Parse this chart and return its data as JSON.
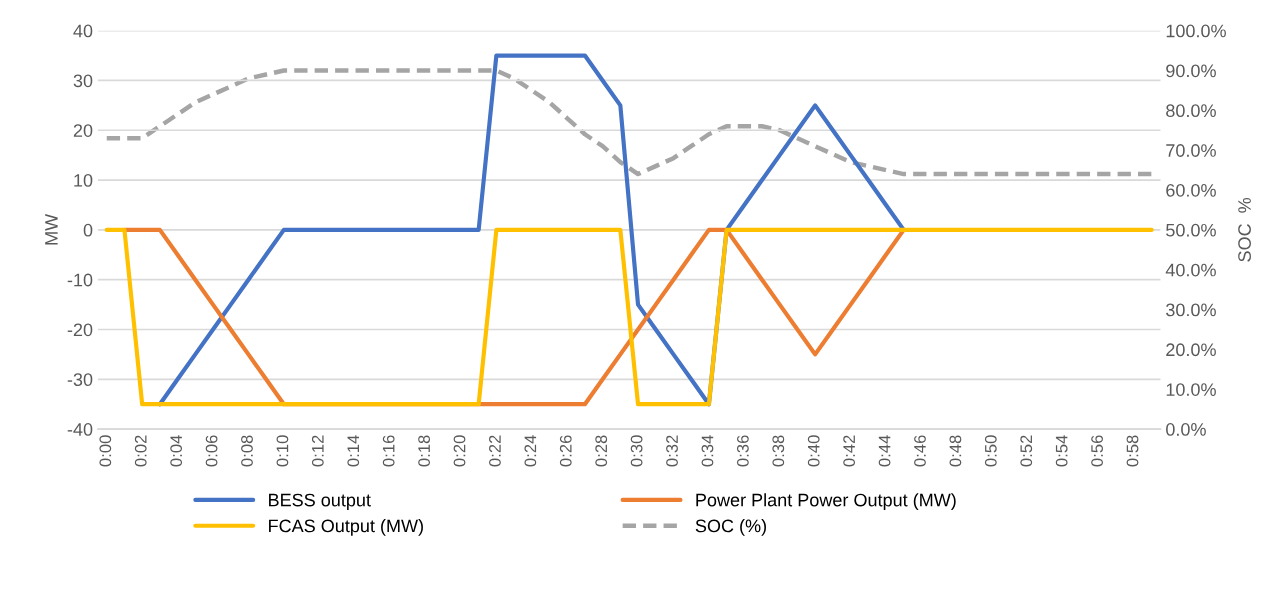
{
  "chart_data": {
    "type": "line",
    "categories": [
      "0:00",
      null,
      "0:02",
      null,
      "0:04",
      null,
      "0:06",
      null,
      "0:08",
      null,
      "0:10",
      null,
      "0:12",
      null,
      "0:14",
      null,
      "0:16",
      null,
      "0:18",
      null,
      "0:20",
      null,
      "0:22",
      null,
      "0:24",
      null,
      "0:26",
      null,
      "0:28",
      null,
      "0:30",
      null,
      "0:32",
      null,
      "0:34",
      null,
      "0:36",
      null,
      "0:38",
      null,
      "0:40",
      null,
      "0:42",
      null,
      "0:44",
      null,
      "0:46",
      null,
      "0:48",
      null,
      "0:50",
      null,
      "0:52",
      null,
      "0:54",
      null,
      "0:56",
      null,
      "0:58",
      null
    ],
    "ylabel": "MW",
    "y2label": "SOC  %",
    "ylim": [
      -40,
      40
    ],
    "yticks": [
      -40,
      -30,
      -20,
      -10,
      0,
      10,
      20,
      30,
      40
    ],
    "y2lim": [
      0,
      100
    ],
    "y2ticks": [
      {
        "value": 0,
        "label": "0.0%"
      },
      {
        "value": 10,
        "label": "10.0%"
      },
      {
        "value": 20,
        "label": "20.0%"
      },
      {
        "value": 30,
        "label": "30.0%"
      },
      {
        "value": 40,
        "label": "40.0%"
      },
      {
        "value": 50,
        "label": "50.0%"
      },
      {
        "value": 60,
        "label": "60.0%"
      },
      {
        "value": 70,
        "label": "70.0%"
      },
      {
        "value": 80,
        "label": "80.0%"
      },
      {
        "value": 90,
        "label": "90.0%"
      },
      {
        "value": 100,
        "label": "100.0%"
      }
    ],
    "grid": "y",
    "legend": "bottom",
    "marker": "none",
    "series": [
      {
        "name": "BESS output",
        "color": "#4472c4",
        "line_style": "solid",
        "values": [
          null,
          null,
          null,
          -35,
          -30,
          -25,
          -20,
          -15,
          -10,
          -5,
          0,
          0,
          0,
          0,
          0,
          0,
          0,
          0,
          0,
          0,
          0,
          0,
          35,
          35,
          35,
          35,
          35,
          35,
          30,
          25,
          -15,
          -20,
          -25,
          -30,
          -35,
          0,
          5,
          10,
          15,
          20,
          25,
          20,
          15,
          10,
          5,
          0,
          null,
          null,
          null,
          null,
          null,
          null,
          null,
          null,
          null,
          null,
          null,
          null,
          null,
          null
        ]
      },
      {
        "name": "Power Plant Power Output (MW)",
        "color": "#ed7d31",
        "line_style": "solid",
        "values": [
          null,
          0,
          0,
          0,
          -5,
          -10,
          -15,
          -20,
          -25,
          -30,
          -35,
          null,
          null,
          null,
          null,
          null,
          null,
          null,
          null,
          null,
          null,
          -35,
          -35,
          -35,
          -35,
          -35,
          -35,
          -35,
          -30,
          -25,
          -20,
          -15,
          -10,
          -5,
          0,
          0,
          -5,
          -10,
          -15,
          -20,
          -25,
          -20,
          -15,
          -10,
          -5,
          0,
          null,
          null,
          null,
          null,
          null,
          null,
          null,
          null,
          null,
          null,
          null,
          null,
          null,
          null
        ]
      },
      {
        "name": "FCAS Output (MW)",
        "color": "#ffc000",
        "line_style": "solid",
        "values": [
          0,
          0,
          -35,
          -35,
          -35,
          -35,
          -35,
          -35,
          -35,
          -35,
          -35,
          -35,
          -35,
          -35,
          -35,
          -35,
          -35,
          -35,
          -35,
          -35,
          -35,
          -35,
          0,
          0,
          0,
          0,
          0,
          0,
          0,
          0,
          -35,
          -35,
          -35,
          -35,
          -35,
          0,
          0,
          0,
          0,
          0,
          0,
          0,
          0,
          0,
          0,
          0,
          0,
          0,
          0,
          0,
          0,
          0,
          0,
          0,
          0,
          0,
          0,
          0,
          0,
          0
        ]
      },
      {
        "name": "SOC (%)",
        "color": "#a5a5a5",
        "line_style": "dashed",
        "axis": "y2",
        "values": [
          73,
          73,
          73,
          76,
          79,
          82,
          84,
          86,
          88,
          89,
          90,
          90,
          90,
          90,
          90,
          90,
          90,
          90,
          90,
          90,
          90,
          90,
          90,
          88,
          85,
          82,
          78,
          74,
          71,
          67,
          64,
          66,
          68,
          71,
          74,
          76,
          76,
          76,
          75,
          73,
          71,
          69,
          67,
          66,
          65,
          64,
          64,
          64,
          64,
          64,
          64,
          64,
          64,
          64,
          64,
          64,
          64,
          64,
          64,
          64
        ]
      }
    ]
  }
}
